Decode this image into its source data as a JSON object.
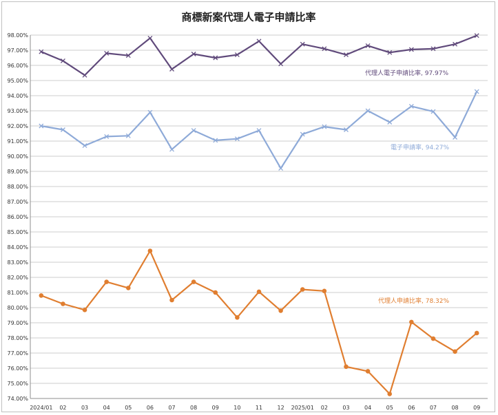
{
  "chart_data": {
    "type": "line",
    "title": "商標新案代理人電子申請比率",
    "xlabel": "",
    "ylabel": "",
    "categories": [
      "2024/01",
      "02",
      "03",
      "04",
      "05",
      "06",
      "07",
      "08",
      "09",
      "10",
      "11",
      "12",
      "2025/01",
      "02",
      "03",
      "04",
      "05",
      "06",
      "07",
      "08",
      "09"
    ],
    "ylim": [
      74,
      98
    ],
    "ytick_step": 1,
    "ytick_format": "{v}.00%",
    "grid": true,
    "legend": "none",
    "series": [
      {
        "key": "agent_e",
        "annotation": "代理人電子申請比率, 97.97%",
        "color": "#604a7b",
        "marker": "x",
        "values": [
          96.9,
          96.3,
          95.35,
          96.8,
          96.65,
          97.8,
          95.75,
          96.75,
          96.5,
          96.7,
          97.6,
          96.1,
          97.4,
          97.1,
          96.7,
          97.3,
          96.85,
          97.05,
          97.1,
          97.4,
          97.97
        ]
      },
      {
        "key": "e_filing",
        "annotation": "電子申請率, 94.27%",
        "color": "#8eaad8",
        "marker": "x",
        "values": [
          92.0,
          91.75,
          90.7,
          91.3,
          91.35,
          92.9,
          90.45,
          91.7,
          91.05,
          91.15,
          91.7,
          89.2,
          91.45,
          91.95,
          91.75,
          93.0,
          92.25,
          93.3,
          92.95,
          91.25,
          94.27
        ]
      },
      {
        "key": "agent",
        "annotation": "代理人申請比率, 78.32%",
        "color": "#e07e30",
        "marker": "circle",
        "values": [
          80.8,
          80.25,
          79.85,
          81.7,
          81.3,
          83.75,
          80.5,
          81.7,
          81.0,
          79.35,
          81.05,
          79.8,
          81.2,
          81.1,
          76.1,
          75.8,
          74.3,
          79.05,
          77.95,
          77.1,
          78.32
        ]
      }
    ]
  }
}
